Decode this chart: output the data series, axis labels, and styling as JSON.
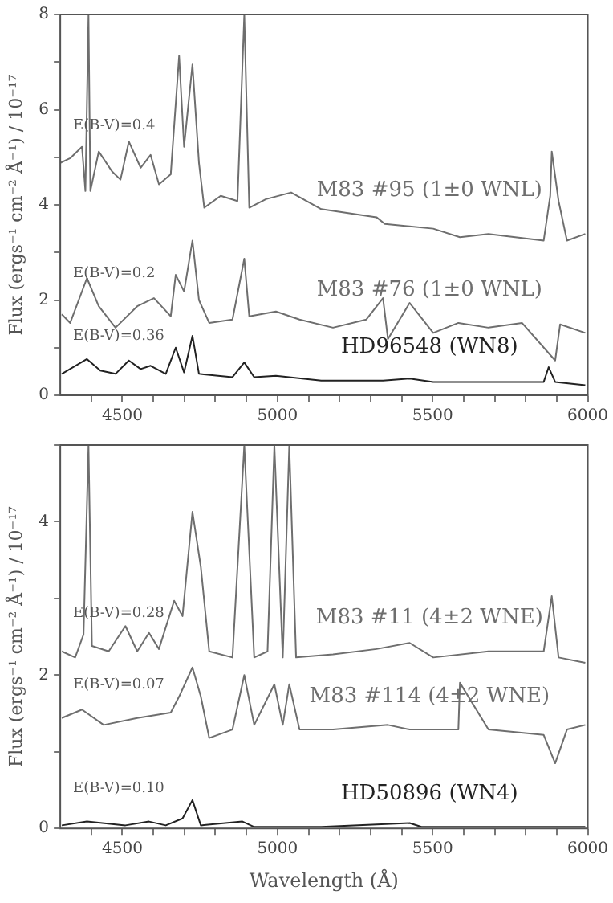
{
  "chart_data": [
    {
      "type": "line",
      "ylabel": "Flux (ergs⁻¹ cm⁻² Å⁻¹) / 10⁻¹⁷",
      "xlim": [
        4300,
        6000
      ],
      "ylim": [
        0,
        8
      ],
      "grid": false,
      "marker": "none",
      "line_style": "solid",
      "xticks": [
        {
          "value": 4400,
          "label": null
        },
        4500,
        {
          "value": 4600,
          "label": null
        },
        {
          "value": 4700,
          "label": null
        },
        {
          "value": 4800,
          "label": null
        },
        {
          "value": 4900,
          "label": null
        },
        5000,
        {
          "value": 5100,
          "label": null
        },
        {
          "value": 5200,
          "label": null
        },
        {
          "value": 5300,
          "label": null
        },
        {
          "value": 5400,
          "label": null
        },
        5500,
        {
          "value": 5600,
          "label": null
        },
        {
          "value": 5700,
          "label": null
        },
        {
          "value": 5800,
          "label": null
        },
        {
          "value": 5900,
          "label": null
        },
        6000
      ],
      "yticks": [
        0,
        {
          "value": 1,
          "label": null
        },
        2,
        {
          "value": 3,
          "label": null
        },
        4,
        {
          "value": 5,
          "label": null
        },
        6,
        {
          "value": 7,
          "label": null
        },
        8
      ],
      "series": [
        {
          "name": "M83 #95 (1±0 WNL)",
          "color": "#6e6e6e",
          "x": [
            4300,
            4332,
            4370,
            4381,
            4391,
            4397,
            4424,
            4467,
            4494,
            4521,
            4559,
            4591,
            4618,
            4656,
            4683,
            4699,
            4726,
            4747,
            4764,
            4817,
            4871,
            4893,
            4909,
            4963,
            5044,
            5141,
            5319,
            5346,
            5502,
            5588,
            5680,
            5858,
            5879,
            5884,
            5906,
            5933,
            5992
          ],
          "values": [
            4.88,
            4.98,
            5.22,
            4.29,
            8,
            4.29,
            5.12,
            4.7,
            4.53,
            5.33,
            4.78,
            5.05,
            4.43,
            4.64,
            7.13,
            5.22,
            6.95,
            4.88,
            3.94,
            4.19,
            4.08,
            8,
            3.94,
            4.12,
            4.26,
            3.91,
            3.74,
            3.6,
            3.5,
            3.32,
            3.39,
            3.25,
            4.19,
            5.12,
            4.08,
            3.25,
            3.39
          ]
        },
        {
          "name": "M83 #76 (1±0 WNL)",
          "color": "#6e6e6e",
          "x": [
            4305,
            4332,
            4386,
            4424,
            4478,
            4548,
            4602,
            4656,
            4672,
            4699,
            4726,
            4747,
            4780,
            4855,
            4893,
            4909,
            4995,
            5071,
            5179,
            5286,
            5340,
            5356,
            5426,
            5502,
            5583,
            5680,
            5788,
            5895,
            5911,
            5992
          ],
          "values": [
            1.7,
            1.52,
            2.46,
            1.87,
            1.42,
            1.87,
            2.04,
            1.66,
            2.53,
            2.18,
            3.25,
            2.0,
            1.52,
            1.59,
            2.87,
            1.66,
            1.76,
            1.59,
            1.42,
            1.59,
            2.04,
            1.18,
            1.94,
            1.31,
            1.52,
            1.42,
            1.52,
            0.73,
            1.49,
            1.31
          ]
        },
        {
          "name": "HD96548 (WN8)",
          "color": "#222222",
          "x": [
            4305,
            4386,
            4429,
            4478,
            4521,
            4559,
            4591,
            4640,
            4672,
            4699,
            4726,
            4747,
            4855,
            4893,
            4925,
            4995,
            5141,
            5340,
            5426,
            5502,
            5680,
            5858,
            5874,
            5895,
            5992
          ],
          "values": [
            0.45,
            0.76,
            0.52,
            0.45,
            0.73,
            0.55,
            0.62,
            0.45,
            1.0,
            0.48,
            1.25,
            0.45,
            0.38,
            0.69,
            0.38,
            0.41,
            0.31,
            0.31,
            0.35,
            0.28,
            0.28,
            0.28,
            0.59,
            0.28,
            0.21
          ]
        }
      ],
      "annotations": [
        "E(B-V)=0.4",
        "E(B-V)=0.2",
        "E(B-V)=0.36"
      ]
    },
    {
      "type": "line",
      "xlabel": "Wavelength (Å)",
      "ylabel": "Flux (ergs⁻¹ cm⁻² Å⁻¹) / 10⁻¹⁷",
      "xlim": [
        4300,
        6000
      ],
      "ylim": [
        0,
        5
      ],
      "grid": false,
      "marker": "none",
      "line_style": "solid",
      "xticks": [
        {
          "value": 4400,
          "label": null
        },
        4500,
        {
          "value": 4600,
          "label": null
        },
        {
          "value": 4700,
          "label": null
        },
        {
          "value": 4800,
          "label": null
        },
        {
          "value": 4900,
          "label": null
        },
        5000,
        {
          "value": 5100,
          "label": null
        },
        {
          "value": 5200,
          "label": null
        },
        {
          "value": 5300,
          "label": null
        },
        {
          "value": 5400,
          "label": null
        },
        5500,
        {
          "value": 5600,
          "label": null
        },
        {
          "value": 5700,
          "label": null
        },
        {
          "value": 5800,
          "label": null
        },
        {
          "value": 5900,
          "label": null
        },
        6000
      ],
      "yticks": [
        0,
        {
          "value": 1,
          "label": null
        },
        2,
        {
          "value": 3,
          "label": null
        },
        4,
        {
          "value": 5,
          "label": null
        }
      ],
      "series": [
        {
          "name": "M83 #11 (4±2 WNE)",
          "color": "#6e6e6e",
          "x": [
            4305,
            4348,
            4375,
            4391,
            4402,
            4456,
            4510,
            4548,
            4586,
            4618,
            4667,
            4694,
            4726,
            4753,
            4780,
            4855,
            4893,
            4925,
            4968,
            4990,
            5017,
            5038,
            5060,
            5179,
            5319,
            5426,
            5502,
            5680,
            5858,
            5884,
            5906,
            5992
          ],
          "values": [
            2.31,
            2.23,
            2.53,
            5,
            2.38,
            2.31,
            2.64,
            2.31,
            2.55,
            2.34,
            2.97,
            2.77,
            4.13,
            3.41,
            2.31,
            2.23,
            5,
            2.23,
            2.31,
            5,
            2.23,
            5,
            2.23,
            2.27,
            2.34,
            2.42,
            2.23,
            2.31,
            2.31,
            3.03,
            2.23,
            2.16
          ]
        },
        {
          "name": "M83 #114 (4±2 WNE)",
          "color": "#6e6e6e",
          "x": [
            4305,
            4370,
            4440,
            4548,
            4656,
            4683,
            4726,
            4753,
            4780,
            4855,
            4893,
            4925,
            4990,
            5017,
            5038,
            5071,
            5179,
            5356,
            5426,
            5583,
            5588,
            5680,
            5858,
            5895,
            5933,
            5992
          ],
          "values": [
            1.44,
            1.55,
            1.35,
            1.44,
            1.51,
            1.72,
            2.1,
            1.72,
            1.18,
            1.29,
            2.0,
            1.35,
            1.88,
            1.35,
            1.88,
            1.29,
            1.29,
            1.35,
            1.29,
            1.29,
            1.9,
            1.29,
            1.22,
            0.85,
            1.29,
            1.35
          ]
        },
        {
          "name": "HD50896 (WN4)",
          "color": "#222222",
          "x": [
            4305,
            4386,
            4510,
            4586,
            4640,
            4694,
            4726,
            4753,
            4887,
            4925,
            5141,
            5426,
            5464,
            5992
          ],
          "values": [
            0.04,
            0.09,
            0.04,
            0.09,
            0.04,
            0.13,
            0.37,
            0.04,
            0.09,
            0.02,
            0.02,
            0.07,
            0.02,
            0.02
          ]
        }
      ],
      "annotations": [
        "E(B-V)=0.28",
        "E(B-V)=0.07",
        "E(B-V)=0.10"
      ]
    }
  ]
}
